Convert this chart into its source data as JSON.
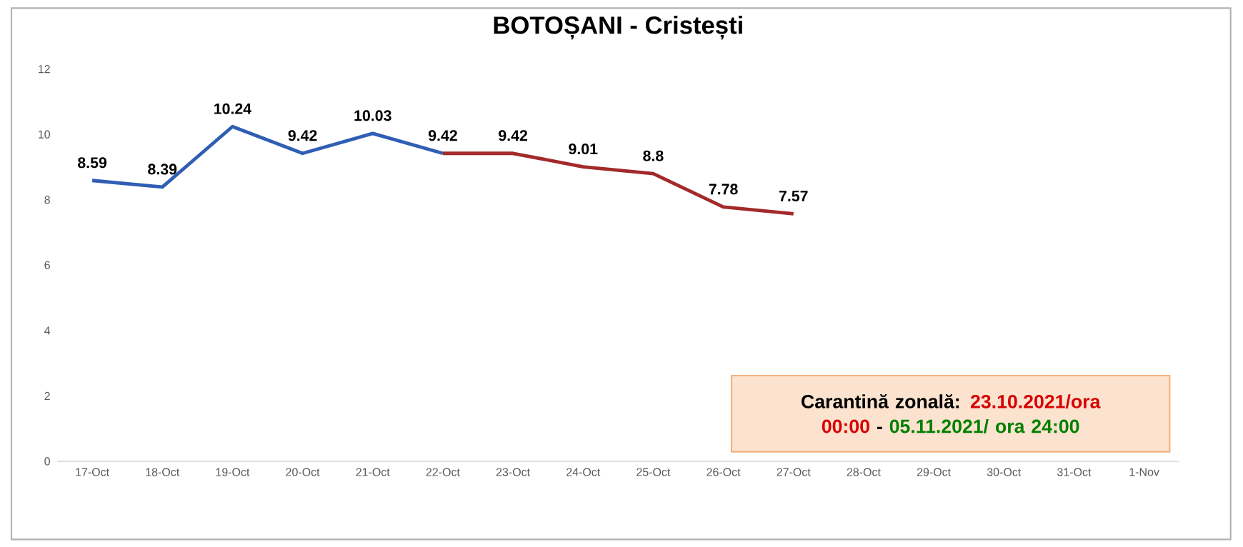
{
  "chart_data": {
    "type": "line",
    "title": "BOTOȘANI - Cristești",
    "categories": [
      "17-Oct",
      "18-Oct",
      "19-Oct",
      "20-Oct",
      "21-Oct",
      "22-Oct",
      "23-Oct",
      "24-Oct",
      "25-Oct",
      "26-Oct",
      "27-Oct",
      "28-Oct",
      "29-Oct",
      "30-Oct",
      "31-Oct",
      "1-Nov"
    ],
    "series": [
      {
        "color": "#2f5eb4",
        "values": [
          8.59,
          8.39,
          10.24,
          9.42,
          10.03,
          9.42,
          null,
          null,
          null,
          null,
          null,
          null,
          null,
          null,
          null,
          null
        ],
        "value_labels": [
          "8.59",
          "8.39",
          "10.24",
          "9.42",
          "10.03",
          "9.42",
          null,
          null,
          null,
          null,
          null,
          null,
          null,
          null,
          null,
          null
        ]
      },
      {
        "color": "#a32a2a",
        "values": [
          null,
          null,
          null,
          null,
          null,
          9.42,
          9.42,
          9.01,
          8.8,
          7.78,
          7.57,
          null,
          null,
          null,
          null,
          null
        ],
        "value_labels": [
          null,
          null,
          null,
          null,
          null,
          null,
          "9.42",
          "9.01",
          "8.8",
          "7.78",
          "7.57",
          null,
          null,
          null,
          null,
          null
        ]
      }
    ],
    "ylim": [
      0,
      12
    ],
    "yticks": [
      0,
      2,
      4,
      6,
      8,
      10,
      12
    ],
    "grid": false,
    "marker": "none",
    "line_style": "solid",
    "annotations": [
      "Carantină zonală:",
      "23.10.2021/ora 00:00",
      "-",
      "05.11.2021/ ora 24:00"
    ]
  }
}
